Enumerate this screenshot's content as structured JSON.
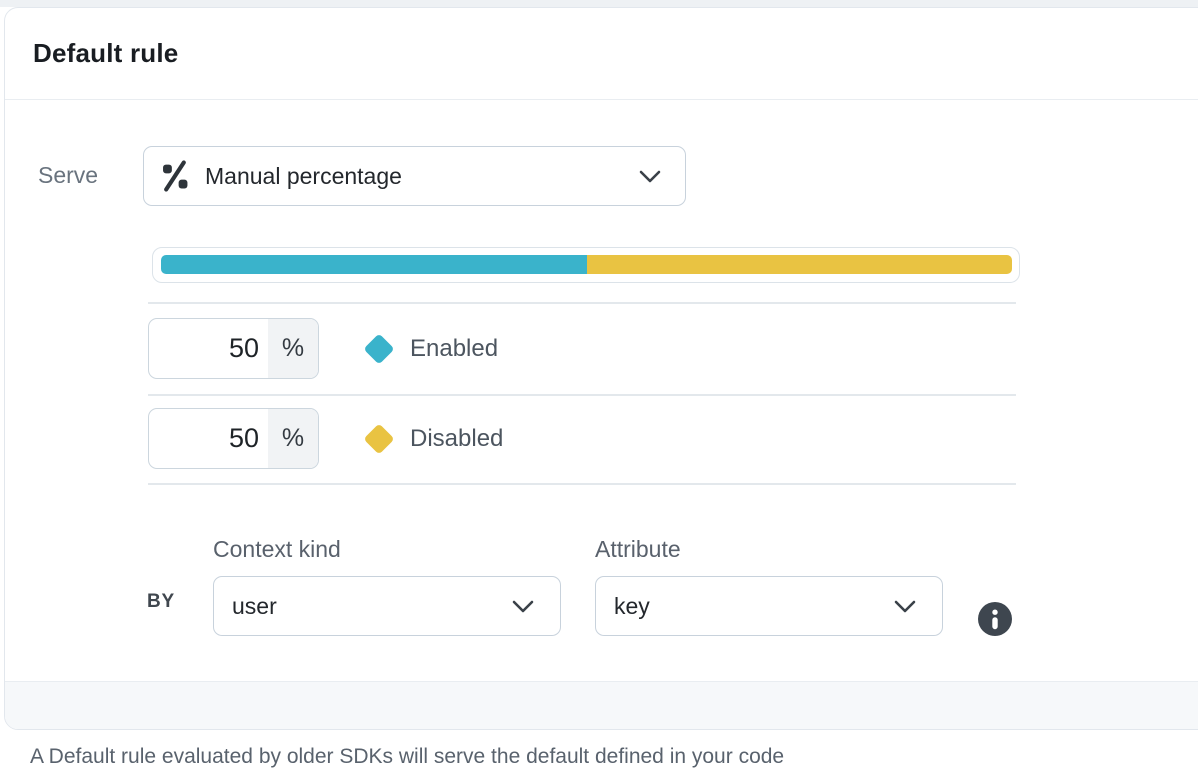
{
  "card": {
    "title": "Default rule"
  },
  "serve": {
    "label": "Serve",
    "icon": "percentage-icon",
    "dropdown_value": "Manual percentage"
  },
  "rollout": {
    "percent_suffix": "%",
    "variations": [
      {
        "name": "Enabled",
        "percent": 50,
        "color": "#3ab3cb"
      },
      {
        "name": "Disabled",
        "percent": 50,
        "color": "#e9c342"
      }
    ]
  },
  "bucket_by": {
    "by_label": "BY",
    "context_kind": {
      "label": "Context kind",
      "value": "user"
    },
    "attribute": {
      "label": "Attribute",
      "value": "key"
    },
    "info_icon": "info-icon"
  },
  "footnote": "A Default rule evaluated by older SDKs will serve the default defined in your code"
}
